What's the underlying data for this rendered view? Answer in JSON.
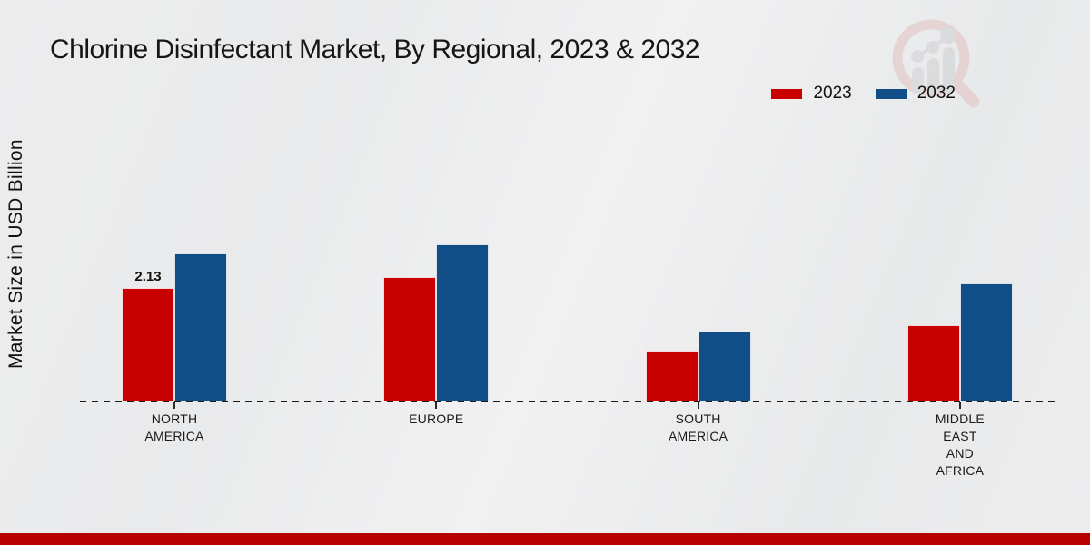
{
  "title": "Chlorine Disinfectant Market, By Regional, 2023 & 2032",
  "y_axis_label": "Market Size in USD Billion",
  "legend": {
    "items": [
      {
        "label": "2023",
        "color": "#c80000"
      },
      {
        "label": "2032",
        "color": "#114d87"
      }
    ]
  },
  "watermark_icon": "magnifier-growth-chart-logo",
  "footer": {
    "bar_color": "#b90000"
  },
  "colors": {
    "series_2023": "#c80000",
    "series_2032": "#114d87",
    "baseline": "#1a1a1a",
    "footer_strip": "#b90000"
  },
  "chart_data": {
    "type": "bar",
    "title": "Chlorine Disinfectant Market, By Regional, 2023 & 2032",
    "ylabel": "Market Size in USD Billion",
    "xlabel": "",
    "units": "USD Billion",
    "categories": [
      "NORTH AMERICA",
      "EUROPE",
      "SOUTH AMERICA",
      "MIDDLE EAST AND AFRICA"
    ],
    "category_label_lines": [
      [
        "NORTH",
        "AMERICA"
      ],
      [
        "EUROPE"
      ],
      [
        "SOUTH",
        "AMERICA"
      ],
      [
        "MIDDLE",
        "EAST",
        "AND",
        "AFRICA"
      ]
    ],
    "series": [
      {
        "name": "2023",
        "color": "#c80000",
        "values": [
          2.13,
          2.34,
          0.95,
          1.43
        ]
      },
      {
        "name": "2032",
        "color": "#114d87",
        "values": [
          2.78,
          2.94,
          1.32,
          2.22
        ]
      }
    ],
    "data_labels": [
      {
        "series": 0,
        "category": 0,
        "text": "2.13"
      }
    ],
    "ylim": [
      0,
      3.2
    ],
    "grid": false,
    "baseline_style": "dashed",
    "legend_position": "top-right"
  }
}
